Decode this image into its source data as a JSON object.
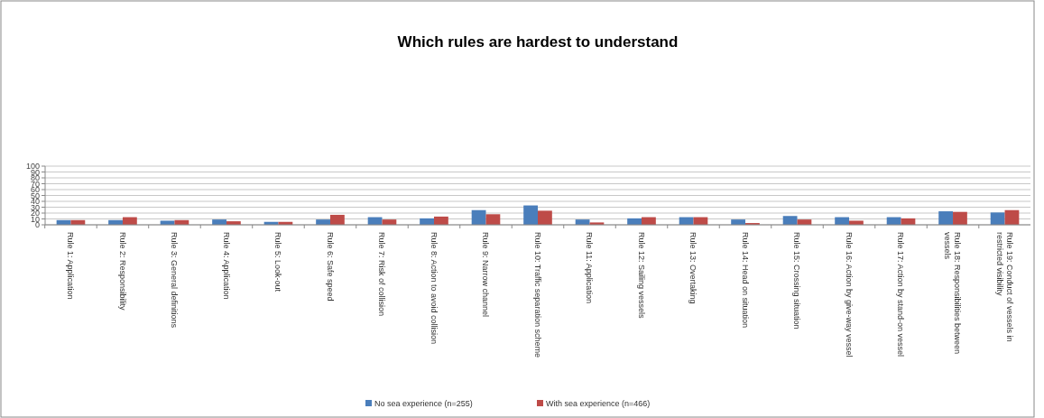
{
  "chart_data": {
    "type": "bar",
    "title": "Which rules are hardest to understand",
    "categories": [
      "Rule 1: Application",
      "Rule 2: Responsibility",
      "Rule 3: General definitions",
      "Rule 4: Application",
      "Rule 5: Look-out",
      "Rule 6: Safe speed",
      "Rule 7: Risk of collision",
      "Rule 8: Action to avoid collision",
      "Rule 9: Narrow channel",
      "Rule 10: Traffic separation scheme",
      "Rule 11: Application",
      "Rule 12: Sailing vessels",
      "Rule 13: Overtaking",
      "Rule 14: Head on situation",
      "Rule 15: Crossing situation",
      "Rule 16: Action by give-way vessel",
      "Rule 17: Action by stand-on vessel",
      "Rule 18: Responsibilities between vessels",
      "Rule 19: Conduct of vessels in restricted visibility"
    ],
    "series": [
      {
        "name": "No sea experience (n=255)",
        "color": "#4a7ebb",
        "values": [
          8,
          8,
          7,
          9,
          5,
          9,
          13,
          11,
          25,
          33,
          9,
          11,
          13,
          9,
          15,
          13,
          13,
          23,
          21
        ]
      },
      {
        "name": "With sea experience (n=466)",
        "color": "#be4b48",
        "values": [
          8,
          13,
          8,
          6,
          5,
          17,
          9,
          14,
          18,
          24,
          4,
          13,
          13,
          3,
          9,
          7,
          11,
          22,
          25
        ]
      }
    ],
    "ylim": [
      0,
      100
    ],
    "yticks": [
      0,
      10,
      20,
      30,
      40,
      50,
      60,
      70,
      80,
      90,
      100
    ],
    "grid": "y",
    "legend": "bottom"
  }
}
